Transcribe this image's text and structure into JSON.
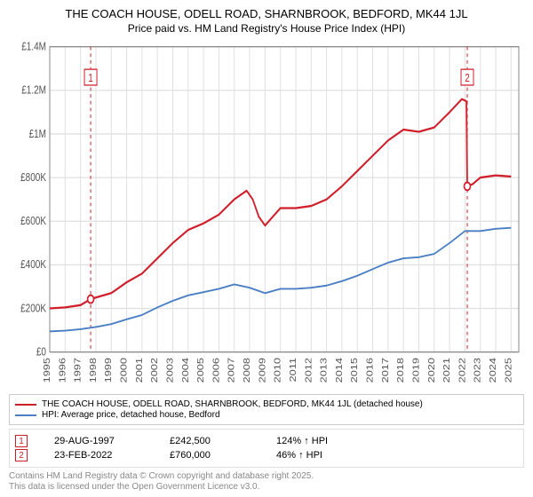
{
  "title": "THE COACH HOUSE, ODELL ROAD, SHARNBROOK, BEDFORD, MK44 1JL",
  "title_fontsize": 13,
  "subtitle": "Price paid vs. HM Land Registry's House Price Index (HPI)",
  "subtitle_fontsize": 12,
  "chart": {
    "type": "line",
    "background_color": "#ffffff",
    "plot_border_color": "#888888",
    "grid_color": "#e0e0e0",
    "axis_label_color": "#555555",
    "axis_label_fontsize": 10,
    "x": {
      "min": 1995,
      "max": 2025.5,
      "ticks": [
        1995,
        1996,
        1997,
        1998,
        1999,
        2000,
        2001,
        2002,
        2003,
        2004,
        2005,
        2006,
        2007,
        2008,
        2009,
        2010,
        2011,
        2012,
        2013,
        2014,
        2015,
        2016,
        2017,
        2018,
        2019,
        2020,
        2021,
        2022,
        2023,
        2024,
        2025
      ],
      "tick_labels": [
        "1995",
        "1996",
        "1997",
        "1998",
        "1999",
        "2000",
        "2001",
        "2002",
        "2003",
        "2004",
        "2005",
        "2006",
        "2007",
        "2008",
        "2009",
        "2010",
        "2011",
        "2012",
        "2013",
        "2014",
        "2015",
        "2016",
        "2017",
        "2018",
        "2019",
        "2020",
        "2021",
        "2022",
        "2023",
        "2024",
        "2025"
      ]
    },
    "y": {
      "min": 0,
      "max": 1400000,
      "ticks": [
        0,
        200000,
        400000,
        600000,
        800000,
        1000000,
        1200000,
        1400000
      ],
      "tick_labels": [
        "£0",
        "£200K",
        "£400K",
        "£600K",
        "£800K",
        "£1M",
        "£1.2M",
        "£1.4M"
      ]
    },
    "vlines": [
      {
        "x": 1997.66,
        "color": "#d01e2a",
        "dash": "3,3",
        "label": "1"
      },
      {
        "x": 2022.15,
        "color": "#d01e2a",
        "dash": "3,3",
        "label": "2"
      }
    ],
    "series": [
      {
        "name": "property",
        "color": "#d01e2a",
        "width": 1.8,
        "label": "THE COACH HOUSE, ODELL ROAD, SHARNBROOK, BEDFORD, MK44 1JL (detached house)",
        "points": [
          [
            1995.0,
            200000
          ],
          [
            1996.0,
            205000
          ],
          [
            1997.0,
            215000
          ],
          [
            1997.66,
            242500
          ],
          [
            1998.0,
            250000
          ],
          [
            1999.0,
            270000
          ],
          [
            2000.0,
            320000
          ],
          [
            2001.0,
            360000
          ],
          [
            2002.0,
            430000
          ],
          [
            2003.0,
            500000
          ],
          [
            2004.0,
            560000
          ],
          [
            2005.0,
            590000
          ],
          [
            2006.0,
            630000
          ],
          [
            2007.0,
            700000
          ],
          [
            2007.8,
            740000
          ],
          [
            2008.2,
            700000
          ],
          [
            2008.6,
            620000
          ],
          [
            2009.0,
            580000
          ],
          [
            2009.5,
            620000
          ],
          [
            2010.0,
            660000
          ],
          [
            2011.0,
            660000
          ],
          [
            2012.0,
            670000
          ],
          [
            2013.0,
            700000
          ],
          [
            2014.0,
            760000
          ],
          [
            2015.0,
            830000
          ],
          [
            2016.0,
            900000
          ],
          [
            2017.0,
            970000
          ],
          [
            2018.0,
            1020000
          ],
          [
            2019.0,
            1010000
          ],
          [
            2020.0,
            1030000
          ],
          [
            2021.0,
            1100000
          ],
          [
            2021.8,
            1160000
          ],
          [
            2022.1,
            1150000
          ],
          [
            2022.15,
            760000
          ],
          [
            2022.5,
            770000
          ],
          [
            2023.0,
            800000
          ],
          [
            2024.0,
            810000
          ],
          [
            2025.0,
            805000
          ]
        ]
      },
      {
        "name": "hpi",
        "color": "#4a7fc4",
        "width": 1.5,
        "label": "HPI: Average price, detached house, Bedford",
        "points": [
          [
            1995.0,
            95000
          ],
          [
            1996.0,
            98000
          ],
          [
            1997.0,
            105000
          ],
          [
            1998.0,
            115000
          ],
          [
            1999.0,
            128000
          ],
          [
            2000.0,
            150000
          ],
          [
            2001.0,
            170000
          ],
          [
            2002.0,
            205000
          ],
          [
            2003.0,
            235000
          ],
          [
            2004.0,
            260000
          ],
          [
            2005.0,
            275000
          ],
          [
            2006.0,
            290000
          ],
          [
            2007.0,
            310000
          ],
          [
            2008.0,
            295000
          ],
          [
            2009.0,
            270000
          ],
          [
            2010.0,
            290000
          ],
          [
            2011.0,
            290000
          ],
          [
            2012.0,
            295000
          ],
          [
            2013.0,
            305000
          ],
          [
            2014.0,
            325000
          ],
          [
            2015.0,
            350000
          ],
          [
            2016.0,
            380000
          ],
          [
            2017.0,
            410000
          ],
          [
            2018.0,
            430000
          ],
          [
            2019.0,
            435000
          ],
          [
            2020.0,
            450000
          ],
          [
            2021.0,
            500000
          ],
          [
            2022.0,
            555000
          ],
          [
            2023.0,
            555000
          ],
          [
            2024.0,
            565000
          ],
          [
            2025.0,
            570000
          ]
        ]
      }
    ],
    "markers": [
      {
        "num": "1",
        "x": 1997.66,
        "y": 242500,
        "color": "#d01e2a"
      },
      {
        "num": "2",
        "x": 2022.15,
        "y": 760000,
        "color": "#d01e2a"
      }
    ]
  },
  "legend": {
    "fontsize": 10,
    "items": [
      {
        "color": "#d01e2a",
        "label": "THE COACH HOUSE, ODELL ROAD, SHARNBROOK, BEDFORD, MK44 1JL (detached house)"
      },
      {
        "color": "#4a7fc4",
        "label": "HPI: Average price, detached house, Bedford"
      }
    ]
  },
  "points_table": {
    "fontsize": 11,
    "marker_border": "#d01e2a",
    "marker_text": "#d01e2a",
    "rows": [
      {
        "num": "1",
        "date": "29-AUG-1997",
        "price": "£242,500",
        "hpi": "124% ↑ HPI"
      },
      {
        "num": "2",
        "date": "23-FEB-2022",
        "price": "£760,000",
        "hpi": "46% ↑ HPI"
      }
    ]
  },
  "footer": {
    "fontsize": 10,
    "color": "#888888",
    "lines": [
      "Contains HM Land Registry data © Crown copyright and database right 2025.",
      "This data is licensed under the Open Government Licence v3.0."
    ]
  }
}
